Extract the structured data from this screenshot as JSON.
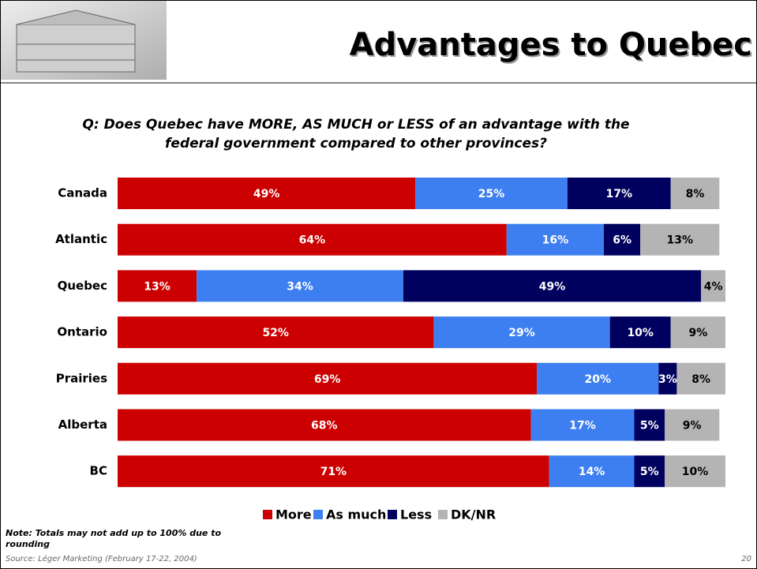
{
  "chart_data": {
    "type": "stacked-bar-horizontal",
    "title": "Advantages to Quebec",
    "subtitle": "Q:  Does Quebec have MORE, AS MUCH or LESS of an advantage with the federal government compared to other provinces?",
    "categories": [
      "Canada",
      "Atlantic",
      "Quebec",
      "Ontario",
      "Prairies",
      "Alberta",
      "BC"
    ],
    "xlim": [
      0,
      100
    ],
    "series": [
      {
        "name": "More",
        "color": "#cc0000",
        "values": [
          49,
          64,
          13,
          52,
          69,
          68,
          71
        ],
        "value_labels": [
          "49%",
          "64%",
          "13%",
          "52%",
          "69%",
          "68%",
          "71%"
        ]
      },
      {
        "name": "As much",
        "color": "#3d7ff0",
        "values": [
          25,
          16,
          34,
          29,
          20,
          17,
          14
        ],
        "value_labels": [
          "25%",
          "16%",
          "34%",
          "29%",
          "20%",
          "17%",
          "14%"
        ]
      },
      {
        "name": "Less",
        "color": "#00005e",
        "values": [
          17,
          6,
          49,
          10,
          3,
          5,
          5
        ],
        "value_labels": [
          "17%",
          "6%",
          "49%",
          "10%",
          "3%",
          "5%",
          "5%"
        ]
      },
      {
        "name": "DK/NR",
        "color": "#b4b4b4",
        "values": [
          8,
          13,
          4,
          9,
          8,
          9,
          10
        ],
        "value_labels": [
          "8%",
          "13%",
          "4%",
          "9%",
          "8%",
          "9%",
          "10%"
        ]
      }
    ]
  },
  "footer": {
    "note": "Note:  Totals may not add up to 100% due to rounding",
    "source": "Source: Léger Marketing (February 17-22, 2004)",
    "page": 20
  }
}
